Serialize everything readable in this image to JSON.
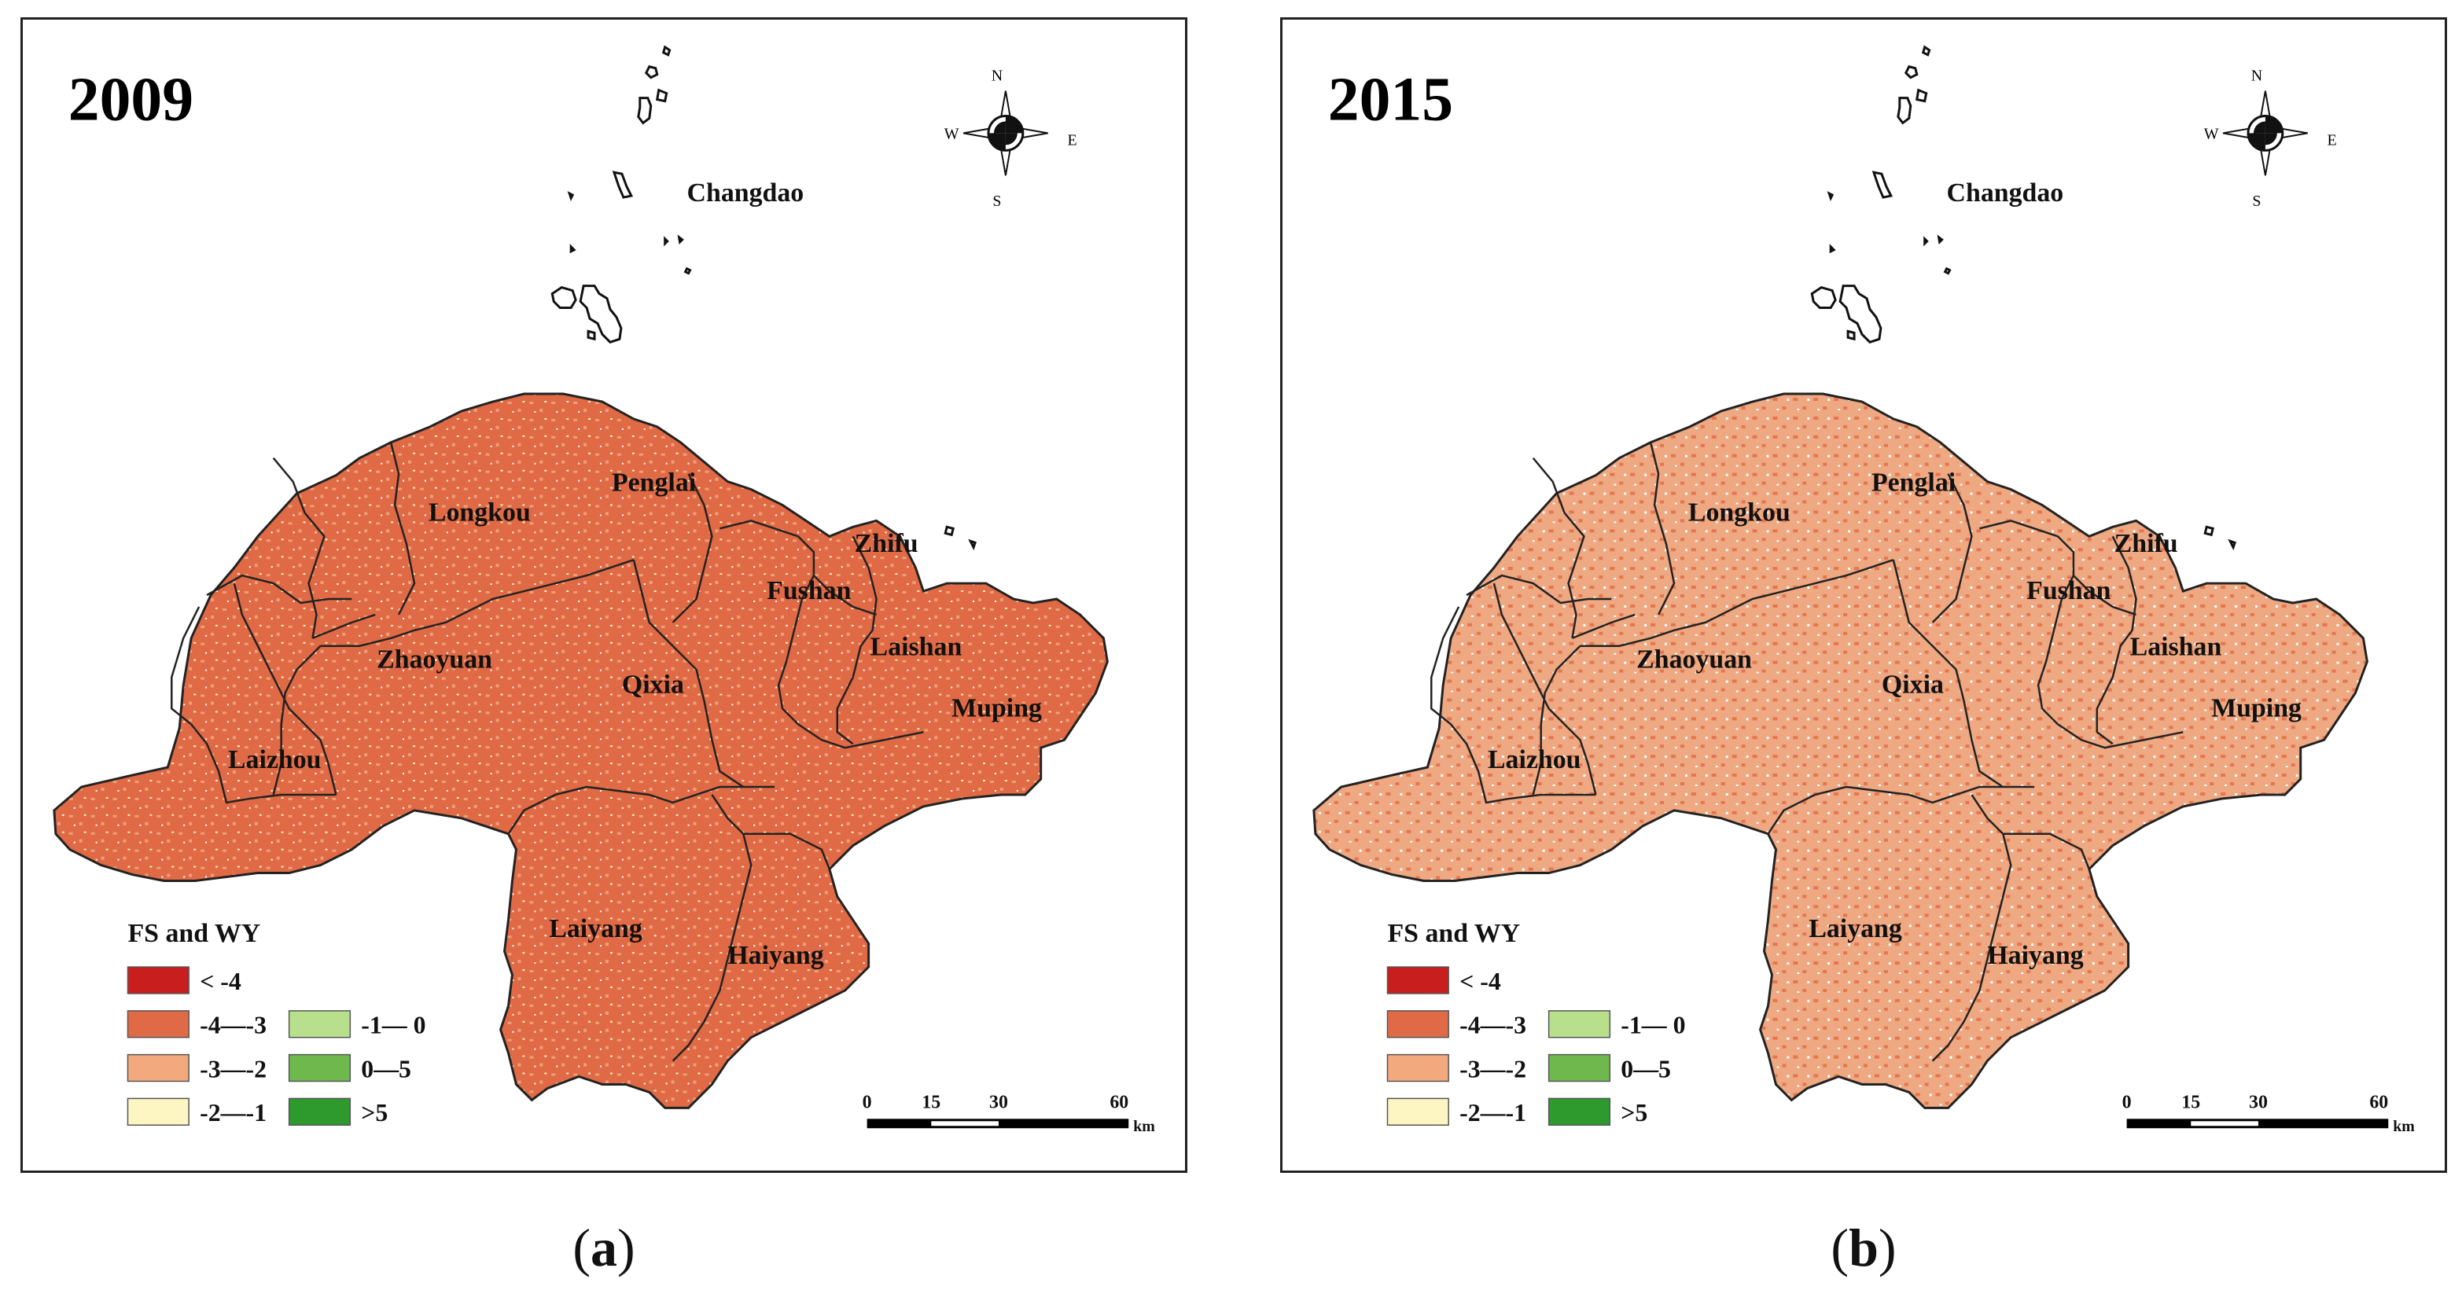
{
  "panels": [
    {
      "id": "a",
      "year": "2009",
      "caption_letter": "a",
      "base_fill": "#e06a45",
      "texture_fill": "#eca07a",
      "patch_fill": "#f6f0c0",
      "dark_fill": "#c81e1e"
    },
    {
      "id": "b",
      "year": "2015",
      "caption_letter": "b",
      "base_fill": "#eea882",
      "texture_fill": "#e4764f",
      "patch_fill": "#ffffff",
      "dark_fill": "#e4764f"
    }
  ],
  "regions": {
    "changdao": "Changdao",
    "longkou": "Longkou",
    "penglai": "Penglai",
    "zhifu": "Zhifu",
    "fushan": "Fushan",
    "laishan": "Laishan",
    "zhaoyuan": "Zhaoyuan",
    "qixia": "Qixia",
    "muping": "Muping",
    "laizhou": "Laizhou",
    "laiyang": "Laiyang",
    "haiyang": "Haiyang"
  },
  "compass": {
    "n": "N",
    "s": "S",
    "e": "E",
    "w": "W"
  },
  "legend": {
    "title": "FS and WY",
    "items": [
      {
        "label": "< -4",
        "color": "#c81e1e"
      },
      {
        "label": "-4—-3",
        "color": "#e06a45"
      },
      {
        "label": "-3—-2",
        "color": "#f2a97e"
      },
      {
        "label": "-2—-1",
        "color": "#fdf6c2"
      },
      {
        "label": "-1— 0",
        "color": "#b8e08c"
      },
      {
        "label": "0—5",
        "color": "#6fb84e"
      },
      {
        "label": ">5",
        "color": "#2e9a2e"
      }
    ]
  },
  "scale": {
    "ticks": [
      "0",
      "15",
      "30",
      "60"
    ],
    "unit": "km"
  }
}
